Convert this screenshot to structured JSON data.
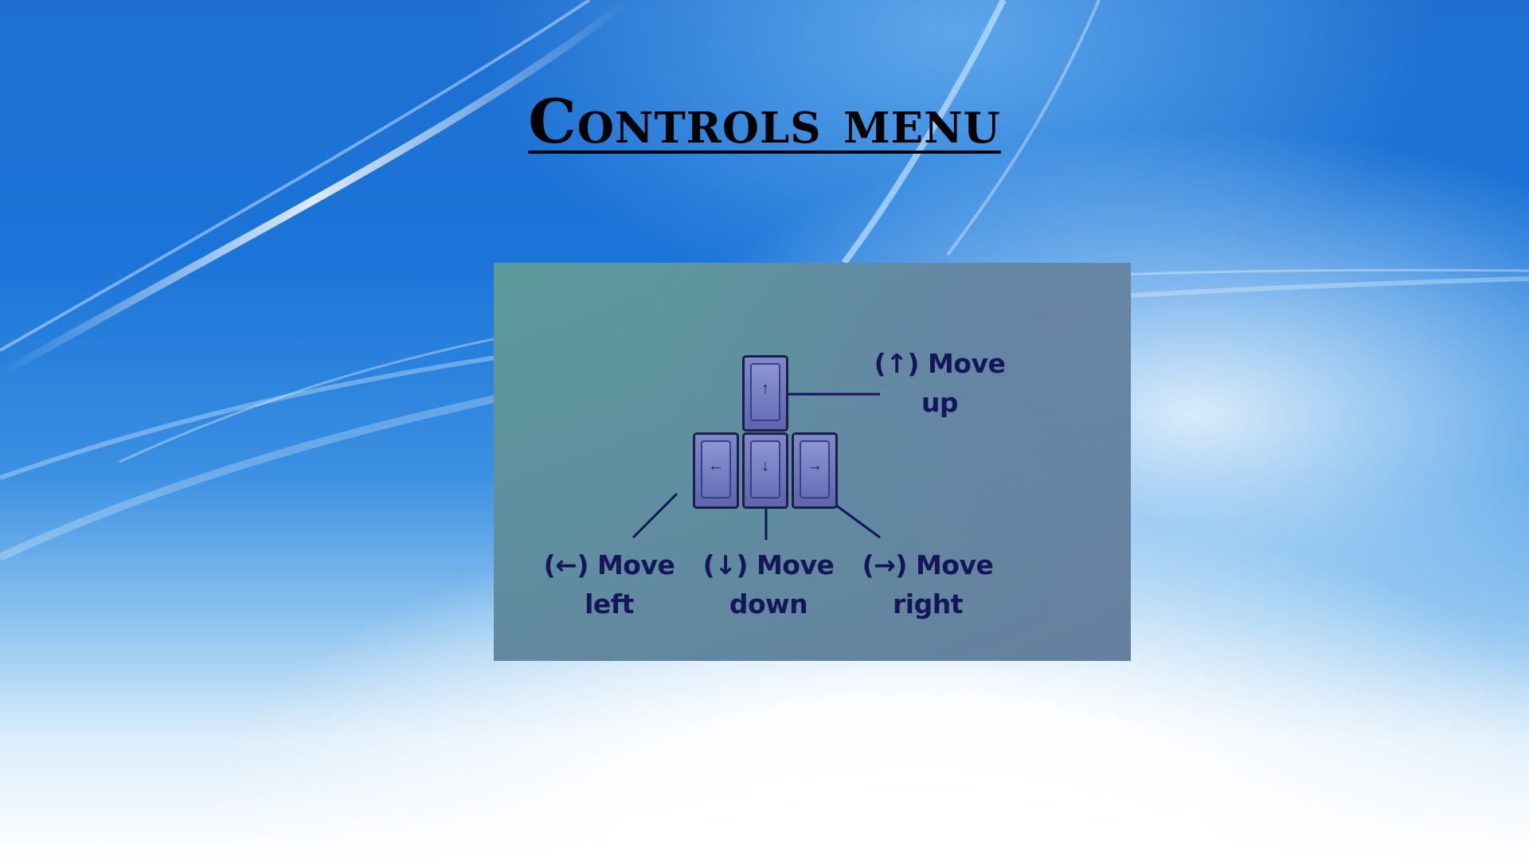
{
  "slide": {
    "title": "Controls menu"
  },
  "controls": {
    "up": {
      "key_icon": "arrow-up-icon",
      "glyph": "↑",
      "line1": "(↑) Move",
      "line2": "up"
    },
    "left": {
      "key_icon": "arrow-left-icon",
      "glyph": "←",
      "line1": "(←) Move",
      "line2": "left"
    },
    "down": {
      "key_icon": "arrow-down-icon",
      "glyph": "↓",
      "line1": "(↓) Move",
      "line2": "down"
    },
    "right": {
      "key_icon": "arrow-right-icon",
      "glyph": "→",
      "line1": "(→) Move",
      "line2": "right"
    }
  },
  "colors": {
    "panel": "#5f8fa0",
    "key": "#6670b7",
    "label_text": "#15155a",
    "background_blue": "#1b74d8"
  }
}
